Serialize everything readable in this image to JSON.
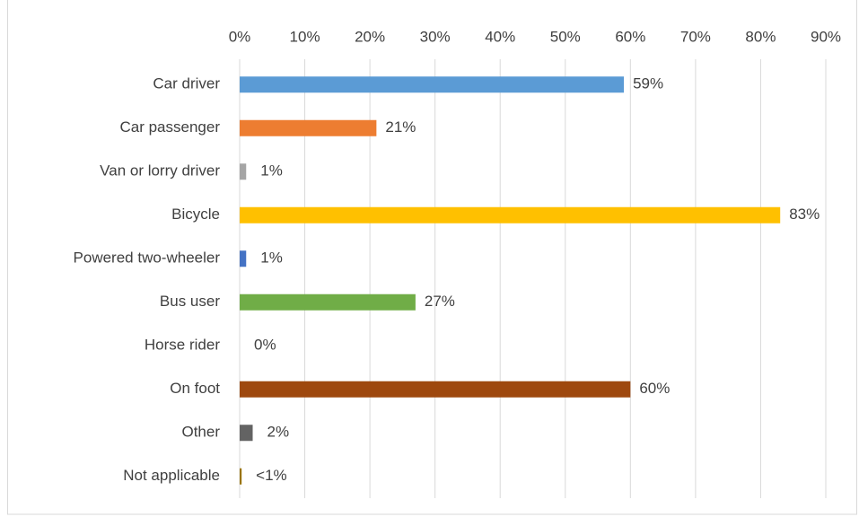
{
  "chart_data": {
    "type": "bar",
    "orientation": "horizontal",
    "categories": [
      "Car driver",
      "Car passenger",
      "Van or lorry driver",
      "Bicycle",
      "Powered two-wheeler",
      "Bus user",
      "Horse rider",
      "On foot",
      "Other",
      "Not applicable"
    ],
    "values": [
      59,
      21,
      1,
      83,
      1,
      27,
      0,
      60,
      2,
      0.3
    ],
    "value_labels": [
      "59%",
      "21%",
      "1%",
      "83%",
      "1%",
      "27%",
      "0%",
      "60%",
      "2%",
      "<1%"
    ],
    "colors": [
      "#5b9bd5",
      "#ed7d31",
      "#a5a5a5",
      "#ffc000",
      "#4472c4",
      "#70ad47",
      "#264478",
      "#9e480e",
      "#636363",
      "#997300"
    ],
    "xlim": [
      0,
      90
    ],
    "xticks": [
      {
        "value": 0,
        "label": "0%"
      },
      {
        "value": 10,
        "label": "10%"
      },
      {
        "value": 20,
        "label": "20%"
      },
      {
        "value": 30,
        "label": "30%"
      },
      {
        "value": 40,
        "label": "40%"
      },
      {
        "value": 50,
        "label": "50%"
      },
      {
        "value": 60,
        "label": "60%"
      },
      {
        "value": 70,
        "label": "70%"
      },
      {
        "value": 80,
        "label": "80%"
      },
      {
        "value": 90,
        "label": "90%"
      }
    ],
    "grid": true
  }
}
